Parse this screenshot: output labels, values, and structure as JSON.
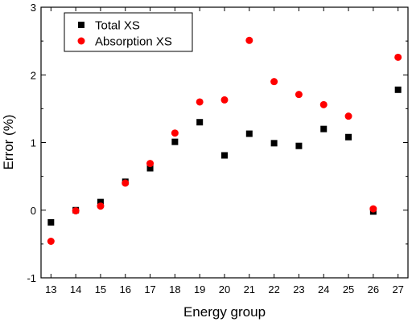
{
  "chart_data": {
    "type": "scatter",
    "title": "",
    "xlabel": "Energy group",
    "ylabel": "Error (%)",
    "xlim": [
      12.6,
      27.4
    ],
    "ylim": [
      -1,
      3
    ],
    "x_ticks": [
      "13",
      "14",
      "15",
      "16",
      "17",
      "18",
      "19",
      "20",
      "21",
      "22",
      "23",
      "24",
      "25",
      "26",
      "27"
    ],
    "y_ticks": [
      "-1",
      "0",
      "1",
      "2",
      "3"
    ],
    "grid": false,
    "legend_position": "top-left",
    "series": [
      {
        "name": "Total XS",
        "marker": "square",
        "color": "#000000",
        "x": [
          13,
          14,
          15,
          16,
          17,
          18,
          19,
          20,
          21,
          22,
          23,
          24,
          25,
          26,
          27
        ],
        "y": [
          -0.18,
          0.0,
          0.12,
          0.42,
          0.62,
          1.01,
          1.3,
          0.81,
          1.13,
          0.99,
          0.95,
          1.2,
          1.08,
          -0.02,
          1.78
        ]
      },
      {
        "name": "Absorption XS",
        "marker": "circle",
        "color": "#ff0000",
        "x": [
          13,
          14,
          15,
          16,
          17,
          18,
          19,
          20,
          21,
          22,
          23,
          24,
          25,
          26,
          27
        ],
        "y": [
          -0.46,
          -0.01,
          0.06,
          0.4,
          0.69,
          1.14,
          1.6,
          1.63,
          2.51,
          1.9,
          1.71,
          1.56,
          1.39,
          0.02,
          2.26
        ]
      }
    ]
  }
}
